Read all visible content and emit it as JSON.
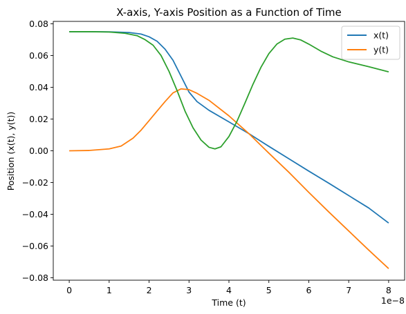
{
  "chart_data": {
    "type": "line",
    "title": "X-axis, Y-axis Position as a Function of Time",
    "xlabel": "Time (t)",
    "ylabel": "Position (x(t), y(t))",
    "x_offset_text": "1e−8",
    "xlim": [
      -0.4,
      8.4
    ],
    "ylim": [
      -0.0815,
      0.0815
    ],
    "x_ticks": [
      0,
      1,
      2,
      3,
      4,
      5,
      6,
      7,
      8
    ],
    "x_tick_labels": [
      "0",
      "1",
      "2",
      "3",
      "4",
      "5",
      "6",
      "7",
      "8"
    ],
    "y_ticks": [
      -0.08,
      -0.06,
      -0.04,
      -0.02,
      0.0,
      0.02,
      0.04,
      0.06,
      0.08
    ],
    "y_tick_labels": [
      "−0.08",
      "−0.06",
      "−0.04",
      "−0.02",
      "0.00",
      "0.02",
      "0.04",
      "0.06",
      "0.08"
    ],
    "grid": false,
    "legend_position": "top-right",
    "series": [
      {
        "name": "x(t)",
        "color": "#1f77b4",
        "points": [
          [
            0,
            0.075
          ],
          [
            0.5,
            0.075
          ],
          [
            1,
            0.0749
          ],
          [
            1.5,
            0.0745
          ],
          [
            1.8,
            0.0735
          ],
          [
            2,
            0.0718
          ],
          [
            2.2,
            0.069
          ],
          [
            2.4,
            0.064
          ],
          [
            2.6,
            0.057
          ],
          [
            2.8,
            0.047
          ],
          [
            3,
            0.037
          ],
          [
            3.2,
            0.031
          ],
          [
            3.5,
            0.0255
          ],
          [
            4,
            0.0182
          ],
          [
            4.5,
            0.0108
          ],
          [
            5,
            0.0028
          ],
          [
            5.5,
            -0.005
          ],
          [
            6,
            -0.0128
          ],
          [
            6.5,
            -0.0204
          ],
          [
            7,
            -0.0282
          ],
          [
            7.5,
            -0.036
          ],
          [
            8,
            -0.0455
          ]
        ]
      },
      {
        "name": "y(t)",
        "color": "#ff7f0e",
        "points": [
          [
            0,
            0
          ],
          [
            0.5,
            0.0002
          ],
          [
            1,
            0.0012
          ],
          [
            1.3,
            0.003
          ],
          [
            1.6,
            0.008
          ],
          [
            1.8,
            0.013
          ],
          [
            2,
            0.019
          ],
          [
            2.2,
            0.025
          ],
          [
            2.4,
            0.031
          ],
          [
            2.6,
            0.0365
          ],
          [
            2.8,
            0.039
          ],
          [
            3,
            0.0385
          ],
          [
            3.2,
            0.0362
          ],
          [
            3.5,
            0.0318
          ],
          [
            4,
            0.022
          ],
          [
            4.5,
            0.0108
          ],
          [
            5,
            -0.0015
          ],
          [
            5.5,
            -0.0135
          ],
          [
            6,
            -0.0262
          ],
          [
            6.5,
            -0.0385
          ],
          [
            7,
            -0.0505
          ],
          [
            7.5,
            -0.0625
          ],
          [
            8,
            -0.0742
          ]
        ]
      },
      {
        "name": "",
        "color": "#2ca02c",
        "points": [
          [
            0,
            0.075
          ],
          [
            0.5,
            0.075
          ],
          [
            1,
            0.0748
          ],
          [
            1.4,
            0.074
          ],
          [
            1.7,
            0.0725
          ],
          [
            1.9,
            0.07
          ],
          [
            2.1,
            0.0665
          ],
          [
            2.3,
            0.06
          ],
          [
            2.5,
            0.05
          ],
          [
            2.7,
            0.038
          ],
          [
            2.9,
            0.025
          ],
          [
            3.1,
            0.0145
          ],
          [
            3.3,
            0.0068
          ],
          [
            3.5,
            0.0022
          ],
          [
            3.65,
            0.0012
          ],
          [
            3.8,
            0.0025
          ],
          [
            4,
            0.009
          ],
          [
            4.2,
            0.0185
          ],
          [
            4.4,
            0.03
          ],
          [
            4.6,
            0.0418
          ],
          [
            4.8,
            0.0525
          ],
          [
            5,
            0.0612
          ],
          [
            5.2,
            0.0672
          ],
          [
            5.4,
            0.0703
          ],
          [
            5.6,
            0.071
          ],
          [
            5.8,
            0.0698
          ],
          [
            6,
            0.0672
          ],
          [
            6.3,
            0.0628
          ],
          [
            6.6,
            0.0592
          ],
          [
            7,
            0.056
          ],
          [
            7.5,
            0.053
          ],
          [
            8,
            0.0497
          ]
        ]
      }
    ]
  }
}
